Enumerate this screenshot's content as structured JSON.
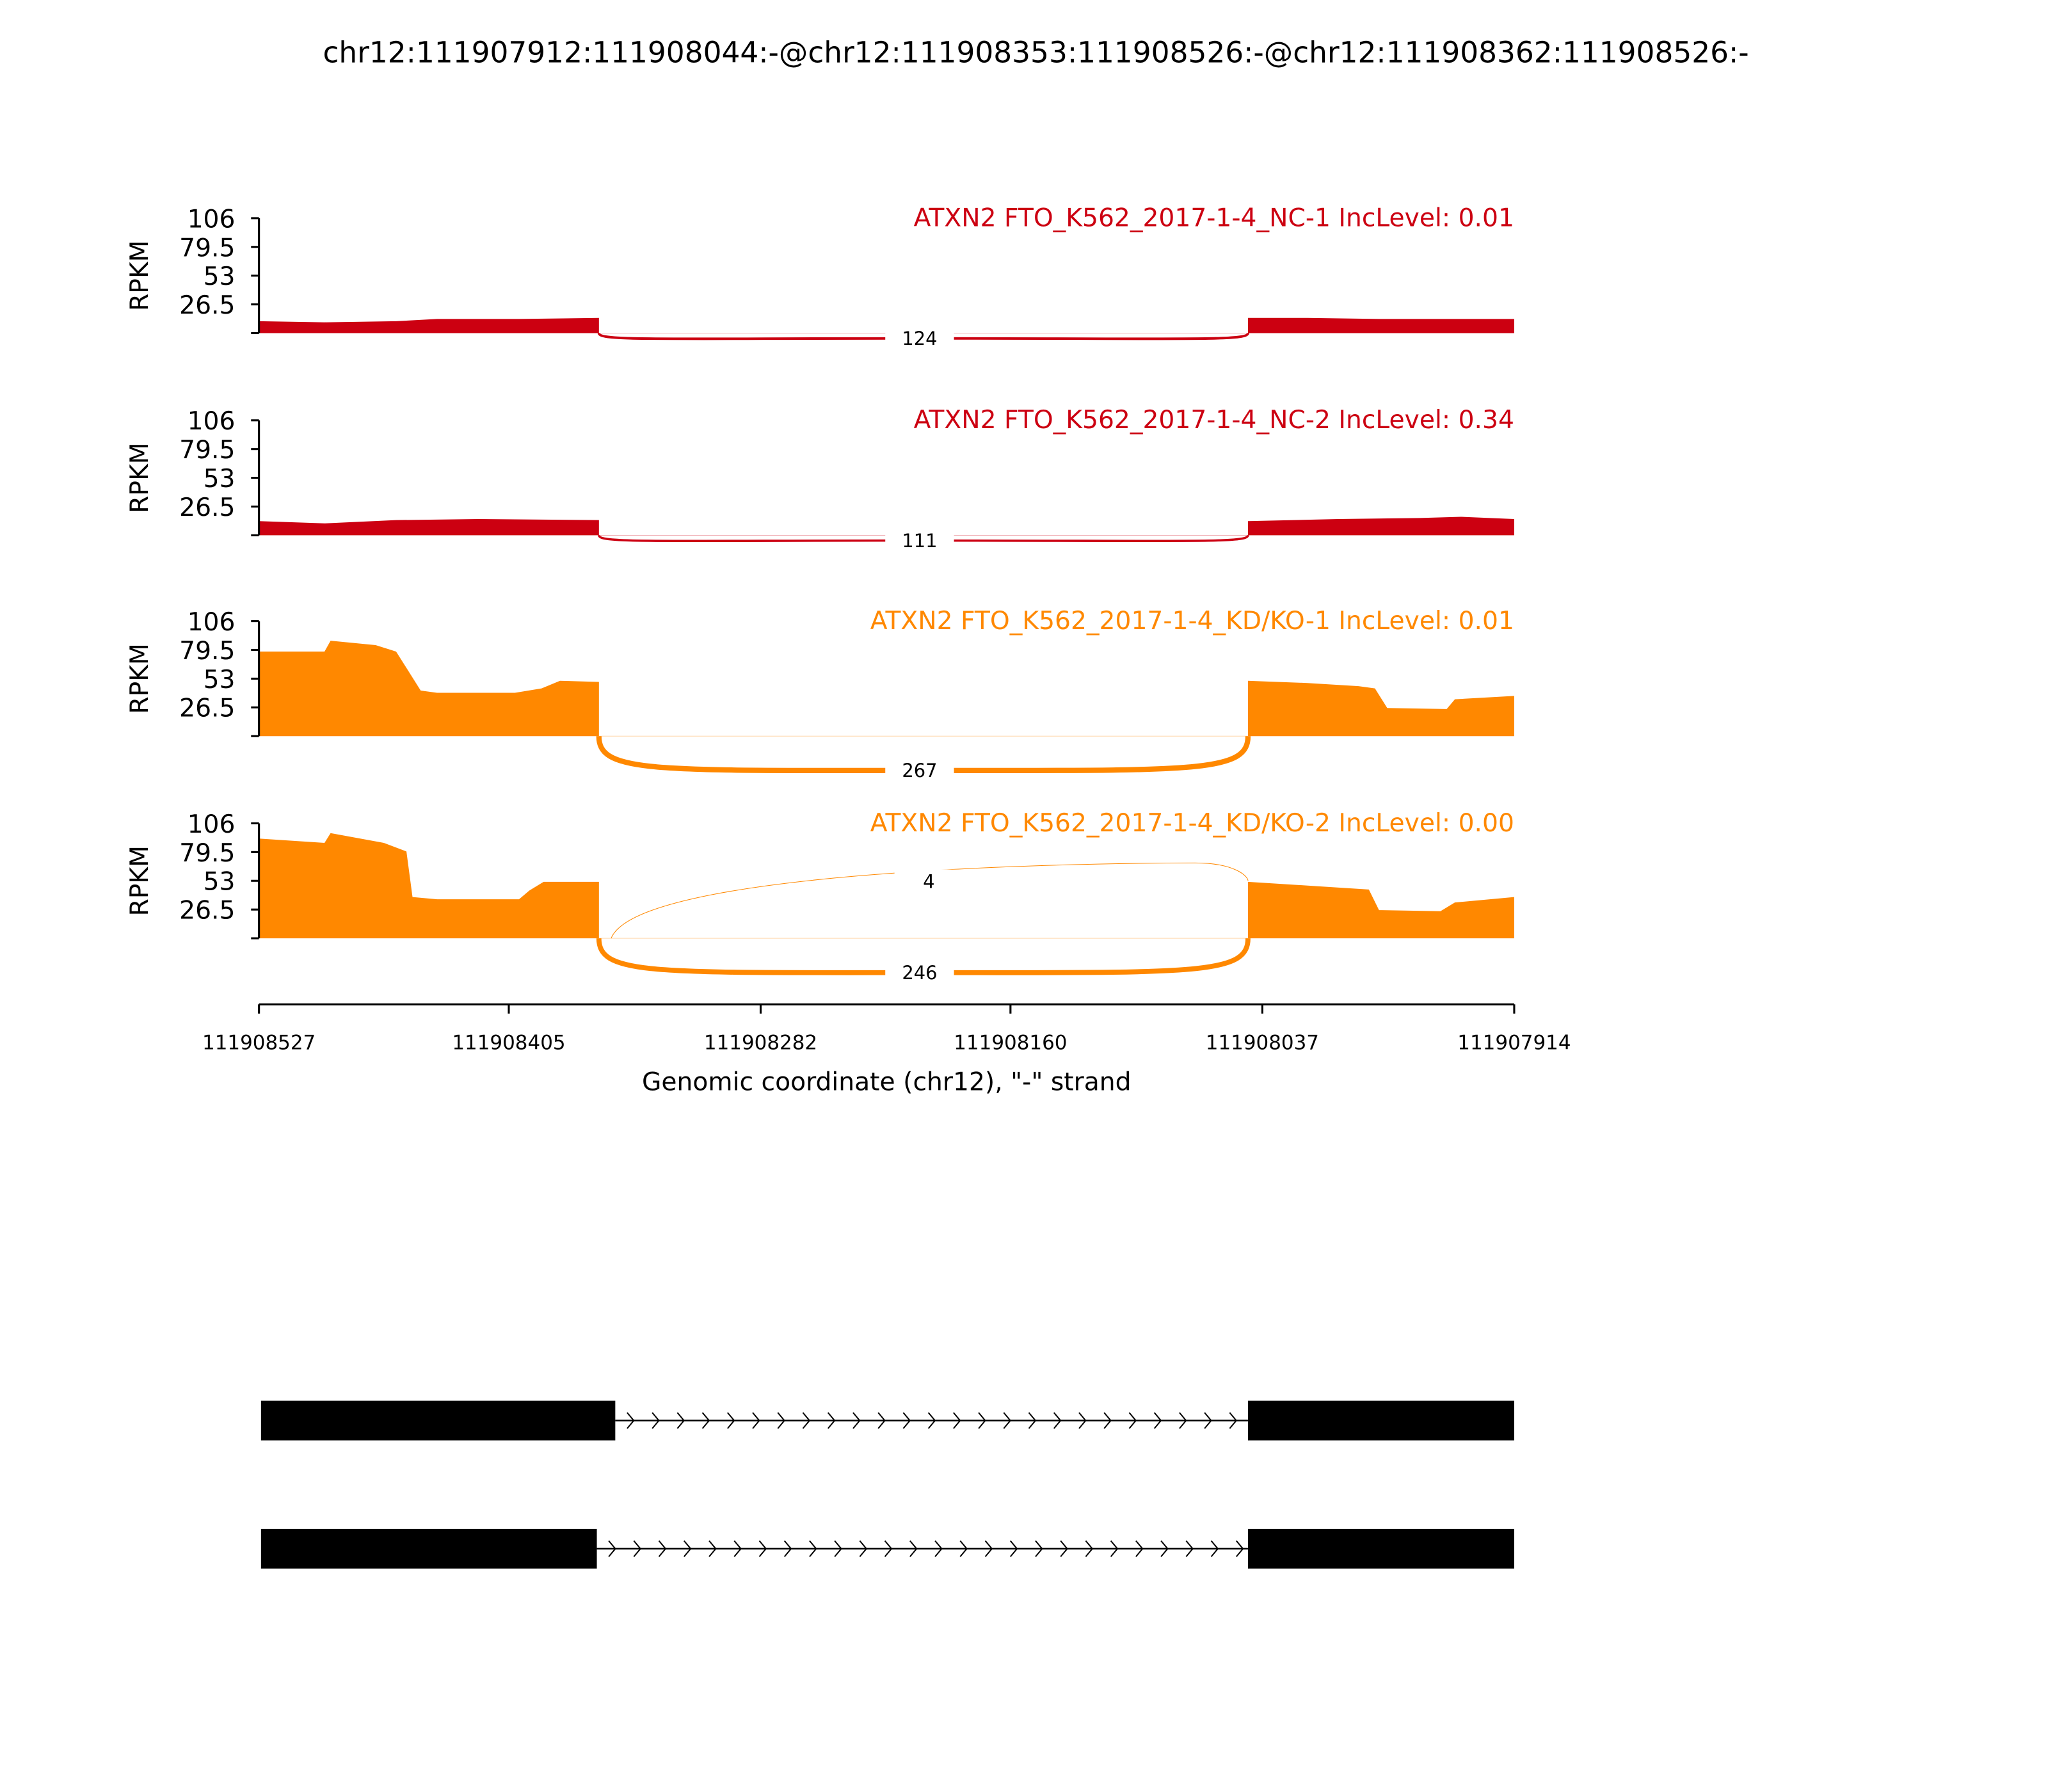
{
  "title": "chr12:111907912:111908044:-@chr12:111908353:111908526:-@chr12:111908362:111908526:-",
  "chart_data": {
    "type": "area",
    "title": "chr12:111907912:111908044:-@chr12:111908353:111908526:-@chr12:111908362:111908526:-",
    "xlabel": "Genomic coordinate (chr12), \"-\" strand",
    "ylabel": "RPKM",
    "xlim": [
      111908527,
      111907914
    ],
    "x_reversed": true,
    "x_ticks": [
      "111908527",
      "111908405",
      "111908282",
      "111908160",
      "111908037",
      "111907914"
    ],
    "ylim": [
      0,
      106
    ],
    "y_ticks": [
      "26.5",
      "53",
      "79.5",
      "106"
    ],
    "grid": false,
    "tracks": [
      {
        "label": "ATXN2 FTO_K562_2017-1-4_NC-1 IncLevel: 0.01",
        "color": "#cc0011",
        "coverage": [
          [
            [
              111908527,
              11
            ],
            [
              111908495,
              10
            ],
            [
              111908460,
              11
            ],
            [
              111908440,
              13
            ],
            [
              111908400,
              13
            ],
            [
              111908361,
              14
            ]
          ],
          [
            [
              111908044,
              14
            ],
            [
              111908015,
              14
            ],
            [
              111907980,
              13
            ],
            [
              111907914,
              13
            ]
          ]
        ],
        "junctions": [
          {
            "start": 111908361,
            "end": 111908044,
            "count": "124",
            "side": "below"
          }
        ]
      },
      {
        "label": "ATXN2 FTO_K562_2017-1-4_NC-2 IncLevel: 0.34",
        "color": "#cc0011",
        "coverage": [
          [
            [
              111908527,
              13
            ],
            [
              111908495,
              11
            ],
            [
              111908460,
              14
            ],
            [
              111908420,
              15
            ],
            [
              111908361,
              14
            ]
          ],
          [
            [
              111908044,
              13
            ],
            [
              111908000,
              15
            ],
            [
              111907960,
              16
            ],
            [
              111907940,
              17
            ],
            [
              111907914,
              15
            ]
          ]
        ],
        "junctions": [
          {
            "start": 111908361,
            "end": 111908044,
            "count": "111",
            "side": "below"
          }
        ]
      },
      {
        "label": "ATXN2 FTO_K562_2017-1-4_KD/KO-1 IncLevel: 0.01",
        "color": "#ff8800",
        "coverage": [
          [
            [
              111908527,
              78
            ],
            [
              111908495,
              78
            ],
            [
              111908492,
              88
            ],
            [
              111908470,
              84
            ],
            [
              111908460,
              78
            ],
            [
              111908448,
              42
            ],
            [
              111908440,
              40
            ],
            [
              111908402,
              40
            ],
            [
              111908389,
              44
            ],
            [
              111908380,
              51
            ],
            [
              111908361,
              50
            ]
          ],
          [
            [
              111908044,
              51
            ],
            [
              111908015,
              49
            ],
            [
              111907990,
              46
            ],
            [
              111907982,
              44
            ],
            [
              111907976,
              26
            ],
            [
              111907947,
              25
            ],
            [
              111907943,
              34
            ],
            [
              111907914,
              37
            ]
          ]
        ],
        "junctions": [
          {
            "start": 111908361,
            "end": 111908044,
            "count": "267",
            "side": "below"
          }
        ]
      },
      {
        "label": "ATXN2 FTO_K562_2017-1-4_KD/KO-2 IncLevel: 0.00",
        "color": "#ff8800",
        "coverage": [
          [
            [
              111908527,
              92
            ],
            [
              111908495,
              88
            ],
            [
              111908492,
              97
            ],
            [
              111908466,
              88
            ],
            [
              111908455,
              80
            ],
            [
              111908452,
              38
            ],
            [
              111908440,
              36
            ],
            [
              111908400,
              36
            ],
            [
              111908395,
              44
            ],
            [
              111908388,
              52
            ],
            [
              111908361,
              52
            ]
          ],
          [
            [
              111908044,
              52
            ],
            [
              111908010,
              48
            ],
            [
              111907985,
              45
            ],
            [
              111907980,
              26
            ],
            [
              111907950,
              25
            ],
            [
              111907943,
              33
            ],
            [
              111907914,
              38
            ]
          ]
        ],
        "junctions": [
          {
            "start": 111908355,
            "end": 111908044,
            "count": "4",
            "side": "above"
          },
          {
            "start": 111908361,
            "end": 111908044,
            "count": "246",
            "side": "below"
          }
        ]
      }
    ],
    "gene_models": [
      {
        "exons": [
          [
            111908526,
            111908353
          ],
          [
            111908044,
            111907912
          ]
        ],
        "strand": "-"
      },
      {
        "exons": [
          [
            111908526,
            111908362
          ],
          [
            111908044,
            111907912
          ]
        ],
        "strand": "-"
      }
    ]
  }
}
